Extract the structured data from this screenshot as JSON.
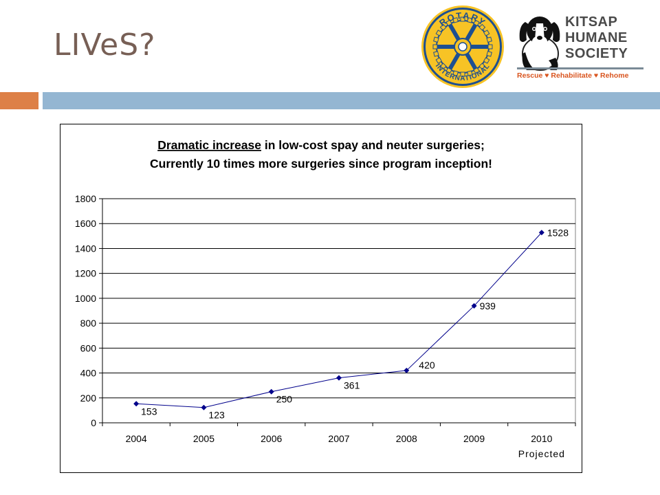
{
  "slide": {
    "title": "LIVeS?",
    "accent_orange": "#dd8047",
    "accent_blue": "#94b6d2",
    "title_color": "#775f55"
  },
  "logos": {
    "rotary": {
      "ring_top": "ROTARY",
      "ring_bottom": "INTERNATIONAL",
      "color_gold": "#f7c325",
      "color_navy": "#1d4f91"
    },
    "kitsap": {
      "line1": "KITSAP",
      "line2": "HUMANE",
      "line3": "SOCIETY",
      "tagline": "Rescue ♥ Rehabilitate ♥ Rehome",
      "dog_icon": "dog-icon"
    }
  },
  "chart_data": {
    "type": "line",
    "title_line1_underlined": "Dramatic increase",
    "title_line1_rest": " in low-cost spay and neuter surgeries;",
    "title_line2": "Currently 10 times more surgeries since program inception!",
    "categories": [
      "2004",
      "2005",
      "2006",
      "2007",
      "2008",
      "2009",
      "2010"
    ],
    "category_sublabels": [
      "",
      "",
      "",
      "",
      "",
      "",
      "Projected"
    ],
    "series": [
      {
        "values": [
          153,
          123,
          250,
          361,
          420,
          939,
          1528
        ],
        "labels": [
          "153",
          "123",
          "250",
          "361",
          "420",
          "939",
          "1528"
        ],
        "color": "#00008b"
      }
    ],
    "y_ticks": [
      "0",
      "200",
      "400",
      "600",
      "800",
      "1000",
      "1200",
      "1400",
      "1600",
      "1800"
    ],
    "ylim": [
      0,
      1800
    ],
    "grid": true,
    "legend": "none"
  }
}
